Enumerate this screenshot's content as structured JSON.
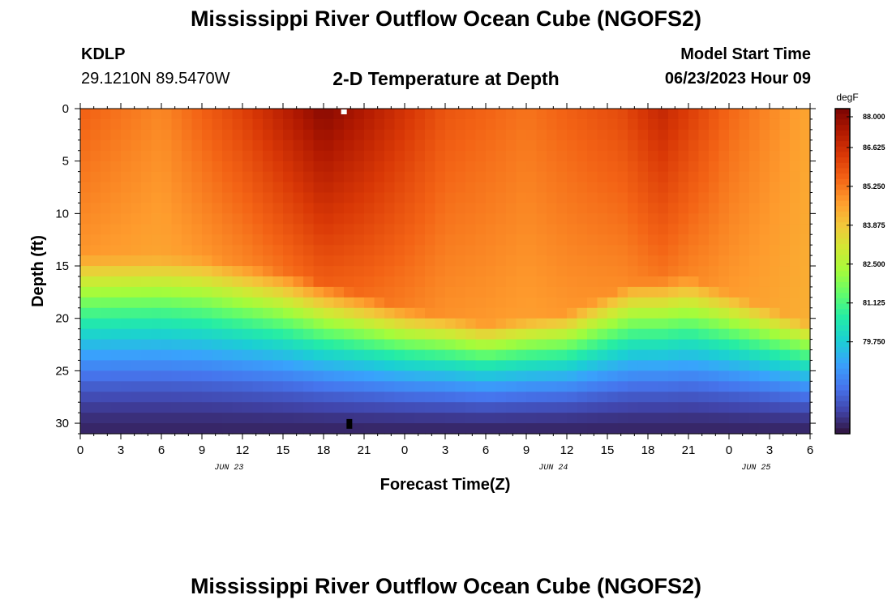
{
  "header": {
    "title": "Mississippi River Outflow Ocean Cube (NGOFS2)",
    "station": "KDLP",
    "coords": "29.1210N  89.5470W",
    "subtitle": "2-D Temperature at Depth",
    "model_start_label": "Model Start Time",
    "model_start_value": "06/23/2023 Hour 09"
  },
  "footer": {
    "title": "Mississippi River Outflow Ocean Cube (NGOFS2)"
  },
  "chart_data": {
    "type": "heatmap",
    "title": "2-D Temperature at Depth",
    "xlabel": "Forecast Time(Z)",
    "ylabel": "Depth (ft)",
    "x_tick_labels": [
      "0",
      "3",
      "6",
      "9",
      "12",
      "15",
      "18",
      "21",
      "0",
      "3",
      "6",
      "9",
      "12",
      "15",
      "18",
      "21",
      "0",
      "3",
      "6"
    ],
    "x_date_labels": [
      {
        "label": "JUN 23",
        "at_hour": 11
      },
      {
        "label": "JUN 24",
        "at_hour": 35
      },
      {
        "label": "JUN 25",
        "at_hour": 50
      }
    ],
    "xlim_hours": [
      0,
      54
    ],
    "y_ticks": [
      0,
      5,
      10,
      15,
      20,
      25,
      30
    ],
    "ylim_ft": [
      0,
      31
    ],
    "y_inverted": true,
    "colorbar": {
      "unit": "degF",
      "range": [
        76.5,
        88.0
      ],
      "tick_values": [
        88.0,
        86.625,
        85.25,
        83.875,
        82.5,
        81.125,
        79.75
      ],
      "tick_labels": [
        "88.000",
        "86.625",
        "85.250",
        "83.875",
        "82.500",
        "81.125",
        "79.750"
      ]
    },
    "field": {
      "description_units": "degF",
      "surface_temp_by_hour": [
        {
          "h": 0,
          "v": 85.6
        },
        {
          "h": 6,
          "v": 85.0
        },
        {
          "h": 12,
          "v": 86.2
        },
        {
          "h": 18,
          "v": 87.8
        },
        {
          "h": 21,
          "v": 87.2
        },
        {
          "h": 27,
          "v": 85.8
        },
        {
          "h": 33,
          "v": 85.3
        },
        {
          "h": 40,
          "v": 86.0
        },
        {
          "h": 43,
          "v": 86.8
        },
        {
          "h": 48,
          "v": 85.5
        },
        {
          "h": 54,
          "v": 84.5
        }
      ],
      "thermocline_top_ft_by_hour": [
        {
          "h": 0,
          "v": 14.0
        },
        {
          "h": 9,
          "v": 14.2
        },
        {
          "h": 15,
          "v": 15.5
        },
        {
          "h": 19,
          "v": 17.0
        },
        {
          "h": 24,
          "v": 19.0
        },
        {
          "h": 30,
          "v": 20.5
        },
        {
          "h": 36,
          "v": 19.5
        },
        {
          "h": 41,
          "v": 16.5
        },
        {
          "h": 45,
          "v": 16.0
        },
        {
          "h": 50,
          "v": 18.5
        },
        {
          "h": 54,
          "v": 20.5
        }
      ],
      "bottom_temp": 76.8
    }
  },
  "colors": {
    "colormap": [
      "#30123b",
      "#4145ab",
      "#4675ed",
      "#39a2fc",
      "#1bcfd4",
      "#24eca6",
      "#61fc6c",
      "#a4fc3b",
      "#d1e834",
      "#f3c63a",
      "#fe9b2d",
      "#f36315",
      "#d93806",
      "#b11901",
      "#7a0402"
    ]
  }
}
